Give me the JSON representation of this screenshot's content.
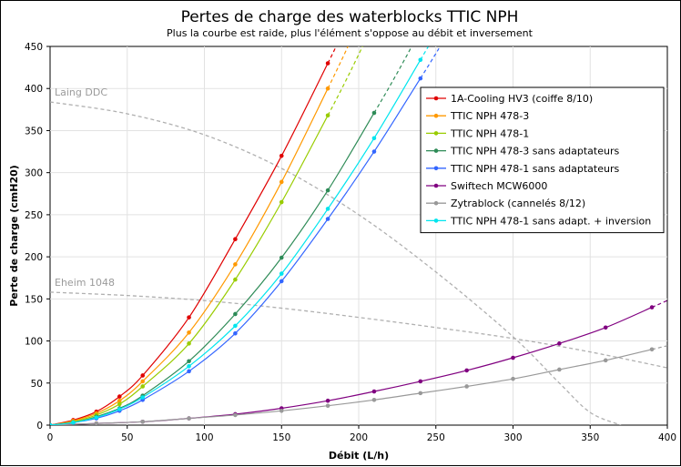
{
  "chart_data": {
    "type": "line",
    "title": "Pertes de charge des waterblocks TTIC NPH",
    "subtitle": "Plus la courbe est raide, plus l'élément s'oppose au débit et inversement",
    "xlabel": "Débit (L/h)",
    "ylabel": "Perte de charge (cmH20)",
    "xlim": [
      0,
      400
    ],
    "ylim": [
      0,
      450
    ],
    "x_ticks": [
      0,
      50,
      100,
      150,
      200,
      250,
      300,
      350,
      400
    ],
    "y_ticks": [
      0,
      50,
      100,
      150,
      200,
      250,
      300,
      350,
      400,
      450
    ],
    "grid": true,
    "legend_position": "top-right",
    "series": [
      {
        "name": "1A-Cooling HV3 (coiffe 8/10)",
        "color": "#e00000",
        "x": [
          0,
          15,
          30,
          45,
          60,
          90,
          120,
          150,
          180
        ],
        "y": [
          0,
          6,
          16,
          34,
          59,
          128,
          221,
          320,
          430
        ],
        "extrapolate_to_x": 185
      },
      {
        "name": "TTIC NPH 478-3",
        "color": "#ff9900",
        "x": [
          0,
          15,
          30,
          45,
          60,
          90,
          120,
          150,
          180
        ],
        "y": [
          0,
          5,
          14,
          29,
          52,
          110,
          191,
          289,
          400
        ],
        "extrapolate_to_x": 197
      },
      {
        "name": "TTIC NPH 478-1",
        "color": "#99cc00",
        "x": [
          0,
          15,
          30,
          45,
          60,
          90,
          120,
          150,
          180
        ],
        "y": [
          0,
          4,
          12,
          25,
          46,
          97,
          173,
          265,
          368
        ],
        "extrapolate_to_x": 203
      },
      {
        "name": "TTIC NPH 478-3 sans adaptateurs",
        "color": "#2e8b57",
        "x": [
          0,
          15,
          30,
          45,
          60,
          90,
          120,
          150,
          180,
          210
        ],
        "y": [
          0,
          3,
          10,
          20,
          35,
          76,
          132,
          199,
          279,
          371
        ],
        "extrapolate_to_x": 240
      },
      {
        "name": "TTIC NPH 478-1 sans adaptateurs",
        "color": "#3366ff",
        "x": [
          0,
          15,
          30,
          45,
          60,
          90,
          120,
          150,
          180,
          210,
          240
        ],
        "y": [
          0,
          3,
          8,
          17,
          30,
          64,
          109,
          171,
          245,
          325,
          412
        ],
        "extrapolate_to_x": 252
      },
      {
        "name": "Swiftech MCW6000",
        "color": "#800080",
        "x": [
          0,
          30,
          60,
          90,
          120,
          150,
          180,
          210,
          240,
          270,
          300,
          330,
          360,
          390
        ],
        "y": [
          0,
          2,
          4,
          8,
          13,
          20,
          29,
          40,
          52,
          65,
          80,
          97,
          116,
          140
        ],
        "extrapolate_to_x": 400
      },
      {
        "name": "Zytrablock (cannelés 8/12)",
        "color": "#999999",
        "x": [
          0,
          30,
          60,
          90,
          120,
          150,
          180,
          210,
          240,
          270,
          300,
          330,
          360,
          390
        ],
        "y": [
          0,
          2,
          4,
          8,
          12,
          17,
          23,
          30,
          38,
          46,
          55,
          66,
          77,
          90
        ],
        "extrapolate_to_x": 400
      },
      {
        "name": "TTIC NPH 478-1 sans adapt. + inversion",
        "color": "#00e5ee",
        "x": [
          0,
          15,
          30,
          45,
          60,
          90,
          120,
          150,
          180,
          210,
          240
        ],
        "y": [
          0,
          3,
          9,
          19,
          33,
          70,
          118,
          180,
          257,
          341,
          434
        ],
        "extrapolate_to_x": 245
      }
    ],
    "pump_curves": [
      {
        "label": "Laing DDC",
        "color": "#b0b0b0",
        "x": [
          0,
          50,
          100,
          150,
          200,
          250,
          300,
          330,
          350,
          370
        ],
        "y": [
          384,
          370,
          345,
          305,
          250,
          182,
          105,
          50,
          15,
          0
        ]
      },
      {
        "label": "Eheim 1048",
        "color": "#b0b0b0",
        "x": [
          0,
          50,
          100,
          150,
          200,
          250,
          300,
          350,
          400
        ],
        "y": [
          158,
          154,
          148,
          139,
          128,
          116,
          103,
          87,
          68
        ]
      }
    ]
  }
}
